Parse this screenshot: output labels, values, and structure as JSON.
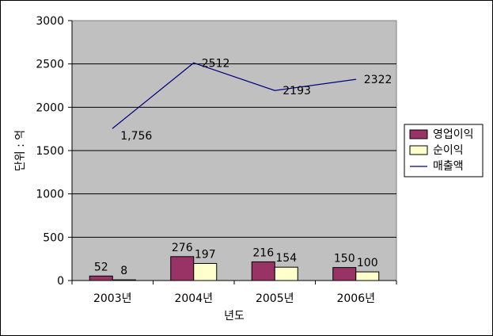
{
  "chart_data": {
    "type": "bar",
    "categories": [
      "2003년",
      "2004년",
      "2005년",
      "2006년"
    ],
    "series": [
      {
        "name": "영업이익",
        "type": "bar",
        "values": [
          52,
          276,
          216,
          150
        ],
        "color": "#993366"
      },
      {
        "name": "순이익",
        "type": "bar",
        "values": [
          8,
          197,
          154,
          100
        ],
        "color": "#ffffcc"
      },
      {
        "name": "매출액",
        "type": "line",
        "values": [
          1756,
          2512,
          2193,
          2322
        ],
        "color": "#000080"
      }
    ],
    "data_labels": {
      "영업이익": [
        "52",
        "276",
        "216",
        "150"
      ],
      "순이익": [
        "8",
        "197",
        "154",
        "100"
      ],
      "매출액": [
        "1,756",
        "2512",
        "2193",
        "2322"
      ]
    },
    "yticks": [
      "0",
      "500",
      "1000",
      "1500",
      "2000",
      "2500",
      "3000"
    ],
    "ylim": [
      0,
      3000
    ],
    "xlabel": "년도",
    "ylabel": "단위 : 억",
    "grid": true,
    "plot_background": "#c0c0c0",
    "legend_position": "right"
  }
}
